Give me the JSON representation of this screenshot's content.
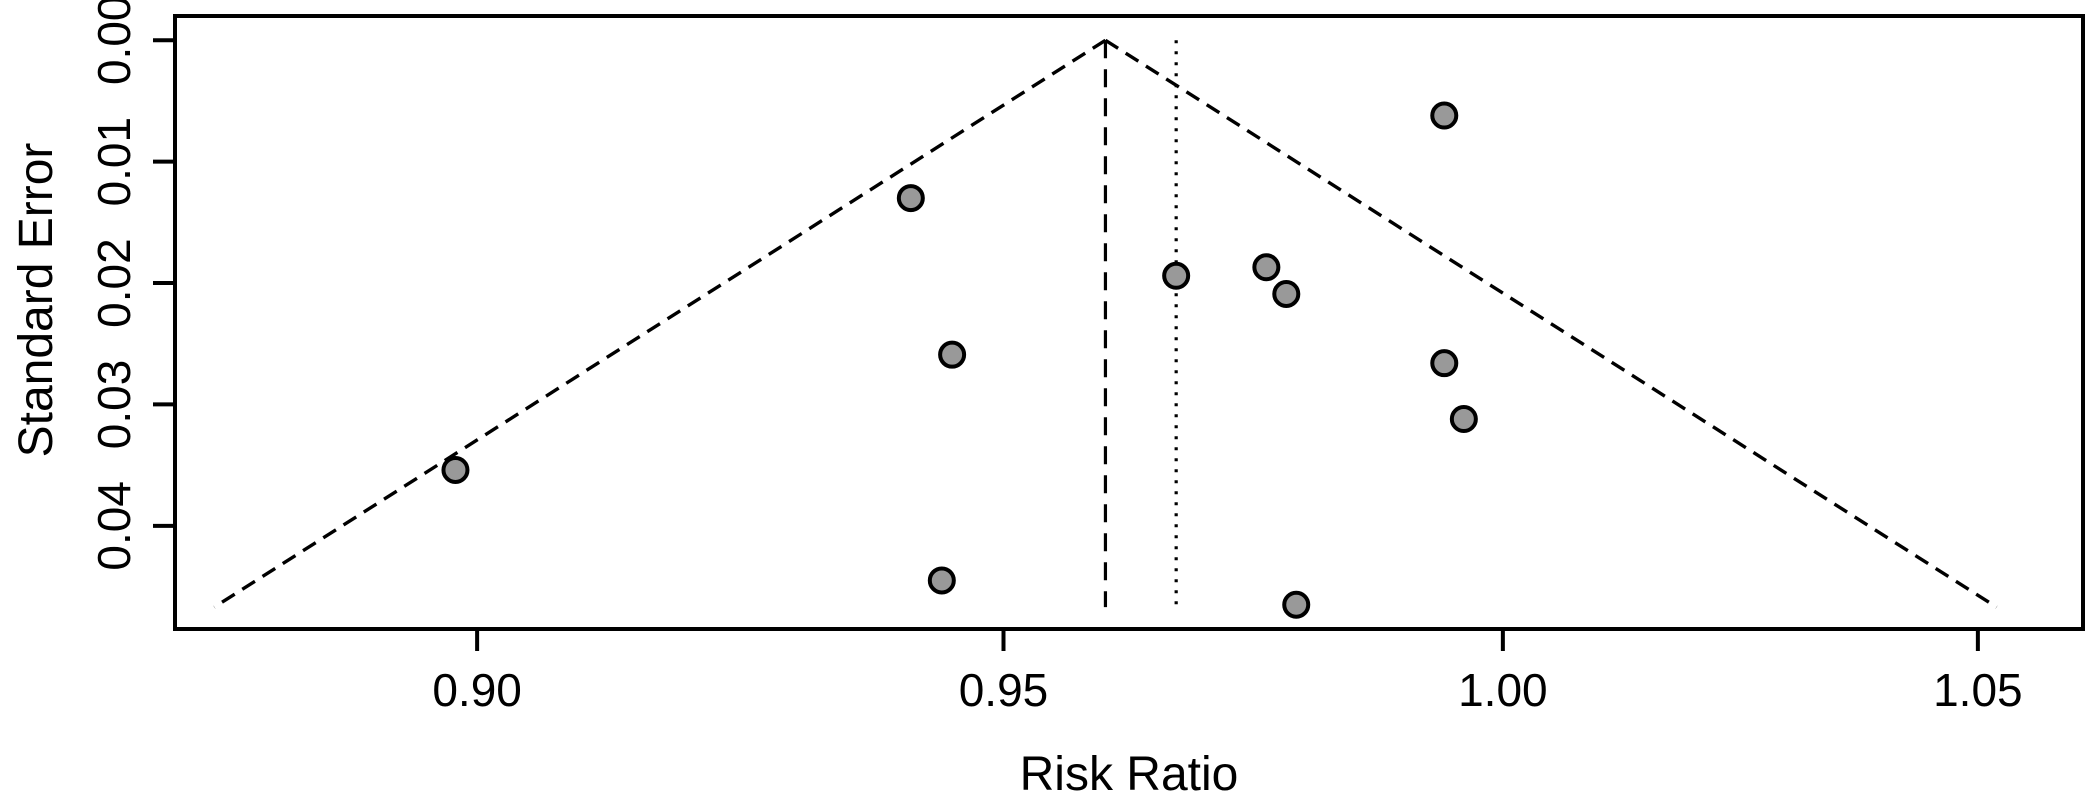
{
  "figure": {
    "xlabel": "Risk Ratio",
    "ylabel": "Standard Error"
  },
  "chart_data": {
    "type": "scatter",
    "subtype": "funnel-plot",
    "title": "",
    "xlabel": "Risk Ratio",
    "ylabel": "Standard Error",
    "x_scale": "log",
    "y_axis_inverted": true,
    "xlim": [
      0.8725,
      1.0614
    ],
    "ylim": [
      -0.002,
      0.0485
    ],
    "x_ticks": [
      0.9,
      0.95,
      1.0,
      1.05
    ],
    "x_tick_labels": [
      "0.90",
      "0.95",
      "1.00",
      "1.05"
    ],
    "y_ticks": [
      0.0,
      0.01,
      0.02,
      0.03,
      0.04
    ],
    "y_tick_labels": [
      "0.00",
      "0.01",
      "0.02",
      "0.03",
      "0.04"
    ],
    "grid": false,
    "legend": "none",
    "points": [
      {
        "risk_ratio": 0.898,
        "standard_error": 0.0354
      },
      {
        "risk_ratio": 0.941,
        "standard_error": 0.013
      },
      {
        "risk_ratio": 0.944,
        "standard_error": 0.0445
      },
      {
        "risk_ratio": 0.945,
        "standard_error": 0.0259
      },
      {
        "risk_ratio": 0.967,
        "standard_error": 0.0194
      },
      {
        "risk_ratio": 0.976,
        "standard_error": 0.0187
      },
      {
        "risk_ratio": 0.978,
        "standard_error": 0.0209
      },
      {
        "risk_ratio": 0.979,
        "standard_error": 0.0465
      },
      {
        "risk_ratio": 0.994,
        "standard_error": 0.0062
      },
      {
        "risk_ratio": 0.994,
        "standard_error": 0.0266
      },
      {
        "risk_ratio": 0.996,
        "standard_error": 0.0312
      }
    ],
    "pooled_estimate_rr": 0.96,
    "reference_line_rr": 0.967,
    "funnel": {
      "z": 1.96,
      "max_se": 0.0467,
      "boundary_style": "dashed",
      "estimate_line_style": "dashed",
      "reference_line_style": "dotted"
    },
    "styles": {
      "point_fill": "#999999",
      "point_stroke": "#000000",
      "line_color": "#000000",
      "background": "#ffffff"
    }
  }
}
